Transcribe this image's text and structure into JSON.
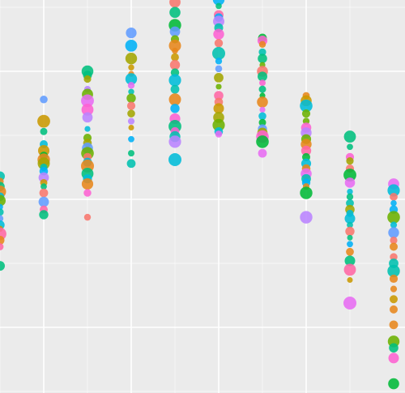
{
  "chart_data": {
    "type": "scatter",
    "title": "",
    "xlabel": "",
    "ylabel": "",
    "grid": true,
    "background": "#ebebeb",
    "gridline_color": "#ffffff",
    "x_major_gridlines": [
      2,
      4,
      6,
      8
    ],
    "y_major_gridlines": [
      0.5,
      1.5,
      2.5
    ],
    "xlim": [
      1.0,
      10.25
    ],
    "ylim": [
      0.0,
      3.06
    ],
    "palette": [
      "#f8766d",
      "#e7861b",
      "#c99800",
      "#a3a500",
      "#6bb100",
      "#00ba38",
      "#00bf7d",
      "#00c0af",
      "#00bcd8",
      "#00b0f6",
      "#619cff",
      "#b983ff",
      "#e76bf3",
      "#fd61d1",
      "#ff67a4"
    ],
    "series": [
      {
        "x": 1,
        "y": [
          1.68,
          1.64,
          1.6,
          1.56,
          1.52,
          1.49,
          1.44,
          1.4,
          1.35,
          1.3,
          1.27,
          1.23,
          1.18,
          1.13,
          0.98
        ]
      },
      {
        "x": 2,
        "y": [
          2.28,
          2.11,
          2.03,
          1.93,
          1.88,
          1.84,
          1.81,
          1.78,
          1.75,
          1.72,
          1.67,
          1.63,
          1.6,
          1.55,
          1.48,
          1.42,
          1.38
        ]
      },
      {
        "x": 3,
        "y": [
          2.5,
          2.47,
          2.44,
          2.36,
          2.32,
          2.27,
          2.2,
          2.14,
          2.05,
          1.98,
          1.94,
          1.9,
          1.86,
          1.83,
          1.79,
          1.76,
          1.7,
          1.66,
          1.62,
          1.55,
          1.36
        ]
      },
      {
        "x": 4,
        "y": [
          2.8,
          2.7,
          2.6,
          2.53,
          2.48,
          2.44,
          2.39,
          2.34,
          2.29,
          2.23,
          2.17,
          2.11,
          2.06,
          1.97,
          1.86,
          1.78
        ]
      },
      {
        "x": 5,
        "y": [
          3.04,
          2.96,
          2.86,
          2.81,
          2.75,
          2.7,
          2.66,
          2.61,
          2.55,
          2.49,
          2.43,
          2.36,
          2.28,
          2.21,
          2.13,
          2.07,
          2.03,
          1.99,
          1.95,
          1.81
        ]
      },
      {
        "x": 6,
        "y": [
          3.06,
          3.01,
          2.94,
          2.92,
          2.89,
          2.84,
          2.79,
          2.72,
          2.64,
          2.58,
          2.52,
          2.45,
          2.38,
          2.31,
          2.26,
          2.21,
          2.14,
          2.08,
          2.03,
          2.01
        ]
      },
      {
        "x": 7,
        "y": [
          2.76,
          2.74,
          2.71,
          2.65,
          2.6,
          2.55,
          2.5,
          2.46,
          2.41,
          2.36,
          2.31,
          2.26,
          2.2,
          2.15,
          2.1,
          2.05,
          2.02,
          1.99,
          1.95,
          1.86
        ]
      },
      {
        "x": 8,
        "y": [
          2.31,
          2.27,
          2.23,
          2.17,
          2.11,
          2.06,
          2.02,
          1.97,
          1.93,
          1.88,
          1.83,
          1.78,
          1.74,
          1.7,
          1.66,
          1.63,
          1.6,
          1.55,
          1.36
        ]
      },
      {
        "x": 9,
        "y": [
          1.99,
          1.91,
          1.83,
          1.8,
          1.74,
          1.69,
          1.63,
          1.56,
          1.52,
          1.47,
          1.42,
          1.39,
          1.35,
          1.3,
          1.25,
          1.2,
          1.15,
          1.09,
          1.02,
          0.95,
          0.87,
          0.69
        ]
      },
      {
        "x": 10,
        "y": [
          1.62,
          1.57,
          1.52,
          1.47,
          1.42,
          1.36,
          1.3,
          1.24,
          1.18,
          1.13,
          1.05,
          1.0,
          0.94,
          0.88,
          0.8,
          0.72,
          0.64,
          0.52,
          0.39,
          0.34,
          0.26,
          0.06
        ]
      }
    ]
  }
}
